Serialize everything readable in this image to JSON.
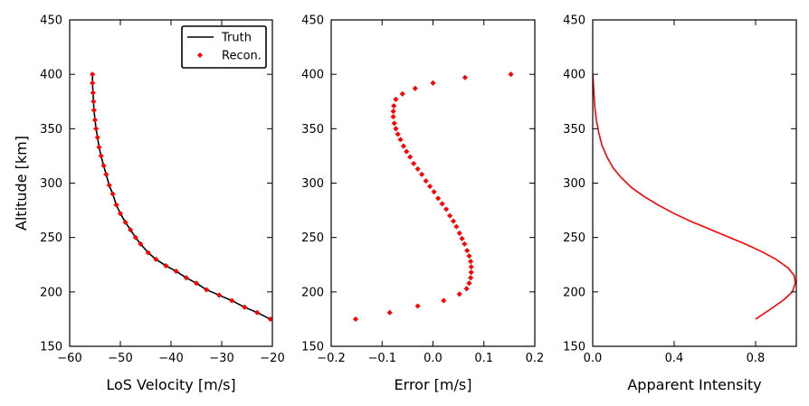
{
  "chart_data": [
    {
      "type": "line",
      "xlabel": "LoS Velocity [m/s]",
      "ylabel": "Altitude [km]",
      "xlim": [
        -60,
        -20
      ],
      "ylim": [
        150,
        450
      ],
      "xticks": [
        -60,
        -50,
        -40,
        -30,
        -20
      ],
      "xtick_labels": [
        "−60",
        "−50",
        "−40",
        "−30",
        "−20"
      ],
      "yticks": [
        150,
        200,
        250,
        300,
        350,
        400,
        450
      ],
      "ytick_labels": [
        "150",
        "200",
        "250",
        "300",
        "350",
        "400",
        "450"
      ],
      "legend": {
        "position": "top-right",
        "entries": [
          "Truth",
          "Recon."
        ]
      },
      "series": [
        {
          "name": "Truth",
          "style": "line",
          "color": "#000000",
          "x": [
            -20.4,
            -23,
            -25.5,
            -28,
            -30.5,
            -33,
            -35,
            -37,
            -39,
            -41,
            -43,
            -44.5,
            -46,
            -47,
            -48,
            -49,
            -50,
            -50.8,
            -51.5,
            -52.2,
            -52.8,
            -53.3,
            -53.8,
            -54.2,
            -54.5,
            -54.8,
            -55,
            -55.2,
            -55.3,
            -55.4,
            -55.5,
            -55.5
          ],
          "y": [
            175,
            181,
            186,
            192,
            197,
            202,
            208,
            213,
            219,
            224,
            230,
            236,
            244,
            250,
            257,
            264,
            272,
            280,
            290,
            298,
            308,
            316,
            325,
            333,
            342,
            350,
            358,
            367,
            375,
            383,
            392,
            400
          ]
        },
        {
          "name": "Recon.",
          "style": "markers",
          "color": "#ff0000",
          "x": [
            -20.4,
            -23,
            -25.5,
            -28,
            -30.5,
            -33,
            -35,
            -37,
            -39,
            -41,
            -43,
            -44.5,
            -46,
            -47,
            -48,
            -49,
            -50,
            -50.8,
            -51.5,
            -52.2,
            -52.8,
            -53.3,
            -53.8,
            -54.2,
            -54.5,
            -54.8,
            -55,
            -55.2,
            -55.3,
            -55.4,
            -55.5,
            -55.5
          ],
          "y": [
            175,
            181,
            186,
            192,
            197,
            202,
            208,
            213,
            219,
            224,
            230,
            236,
            244,
            250,
            257,
            264,
            272,
            280,
            290,
            298,
            308,
            316,
            325,
            333,
            342,
            350,
            358,
            367,
            375,
            383,
            392,
            400
          ]
        }
      ]
    },
    {
      "type": "scatter",
      "xlabel": "Error [m/s]",
      "ylabel": "",
      "xlim": [
        -0.2,
        0.2
      ],
      "ylim": [
        150,
        450
      ],
      "xticks": [
        -0.2,
        -0.1,
        0.0,
        0.1,
        0.2
      ],
      "xtick_labels": [
        "−0.2",
        "−0.1",
        "0.0",
        "0.1",
        "0.2"
      ],
      "yticks": [
        150,
        200,
        250,
        300,
        350,
        400,
        450
      ],
      "ytick_labels": [
        "150",
        "200",
        "250",
        "300",
        "350",
        "400",
        "450"
      ],
      "series": [
        {
          "style": "markers",
          "color": "#ff0000",
          "x": [
            -0.152,
            -0.085,
            -0.03,
            0.021,
            0.052,
            0.066,
            0.071,
            0.074,
            0.075,
            0.075,
            0.074,
            0.071,
            0.067,
            0.062,
            0.057,
            0.052,
            0.046,
            0.04,
            0.033,
            0.026,
            0.018,
            0.01,
            0.002,
            -0.006,
            -0.014,
            -0.022,
            -0.03,
            -0.038,
            -0.045,
            -0.052,
            -0.058,
            -0.064,
            -0.069,
            -0.073,
            -0.076,
            -0.078,
            -0.078,
            -0.077,
            -0.073,
            -0.06,
            -0.035,
            0.0,
            0.063,
            0.153
          ],
          "y": [
            175,
            181,
            187,
            192,
            198,
            203,
            208,
            213,
            218,
            223,
            228,
            233,
            238,
            244,
            249,
            254,
            260,
            265,
            270,
            276,
            281,
            286,
            292,
            297,
            302,
            308,
            313,
            318,
            324,
            329,
            334,
            340,
            345,
            350,
            355,
            361,
            366,
            371,
            377,
            382,
            387,
            392,
            397,
            400
          ]
        }
      ]
    },
    {
      "type": "line",
      "xlabel": "Apparent Intensity",
      "ylabel": "",
      "xlim": [
        0.0,
        1.0
      ],
      "ylim": [
        150,
        450
      ],
      "xticks": [
        0.0,
        0.4,
        0.8
      ],
      "xtick_labels": [
        "0.0",
        "0.4",
        "0.8"
      ],
      "yticks": [
        150,
        200,
        250,
        300,
        350,
        400,
        450
      ],
      "ytick_labels": [
        "150",
        "200",
        "250",
        "300",
        "350",
        "400",
        "450"
      ],
      "series": [
        {
          "style": "line",
          "color": "#ff0000",
          "x": [
            0.8,
            0.88,
            0.94,
            0.98,
            0.995,
            0.99,
            0.96,
            0.9,
            0.83,
            0.75,
            0.66,
            0.57,
            0.48,
            0.4,
            0.32,
            0.25,
            0.19,
            0.14,
            0.1,
            0.07,
            0.045,
            0.03,
            0.018,
            0.01,
            0.006,
            0.003,
            0.001
          ],
          "y": [
            175,
            185,
            193,
            200,
            208,
            215,
            222,
            230,
            237,
            244,
            251,
            258,
            265,
            272,
            280,
            288,
            296,
            305,
            314,
            324,
            335,
            346,
            358,
            370,
            382,
            392,
            400
          ]
        }
      ]
    }
  ]
}
